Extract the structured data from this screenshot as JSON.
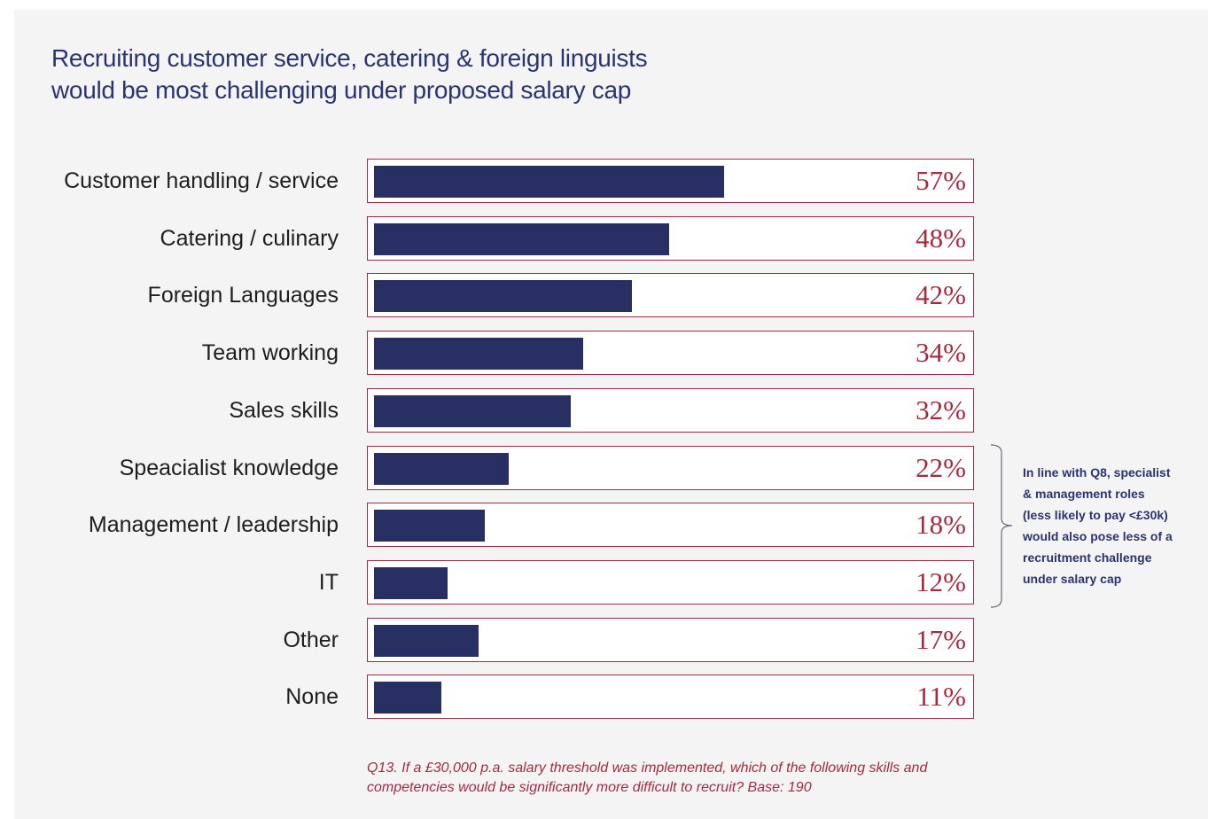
{
  "chart_data": {
    "type": "bar",
    "orientation": "horizontal",
    "title": "Recruiting customer service, catering & foreign linguists would be most challenging under proposed salary cap",
    "title_lines": [
      "Recruiting customer service, catering & foreign linguists",
      "would be most challenging under proposed salary cap"
    ],
    "categories": [
      "Customer handling / service",
      "Catering / culinary",
      "Foreign Languages",
      "Team working",
      "Sales skills",
      "Speacialist knowledge",
      "Management / leadership",
      "IT",
      "Other",
      "None"
    ],
    "values": [
      57,
      48,
      42,
      34,
      32,
      22,
      18,
      12,
      17,
      11
    ],
    "value_labels": [
      "57%",
      "48%",
      "42%",
      "34%",
      "32%",
      "22%",
      "18%",
      "12%",
      "17%",
      "11%"
    ],
    "xlim": [
      0,
      100
    ],
    "grid": false,
    "legend": "none",
    "annotation": "In line with Q8, specialist & management roles (less likely to pay <£30k) would also pose less of a recruitment challenge under salary cap",
    "annotation_lines": [
      "In line with Q8, specialist",
      "& management roles",
      "(less likely to pay <£30k)",
      "would also pose less of a",
      "recruitment challenge",
      "under salary cap"
    ],
    "footnote_lines": [
      "Q13. If a £30,000 p.a. salary threshold was implemented, which of the following skills and",
      "competencies would be significantly more difficult to recruit? Base: 190"
    ]
  },
  "colors": {
    "bar": "#272f63",
    "border": "#a52a3f",
    "value_text": "#a52a3f",
    "title_text": "#2b3470",
    "background": "#f4f4f4"
  }
}
